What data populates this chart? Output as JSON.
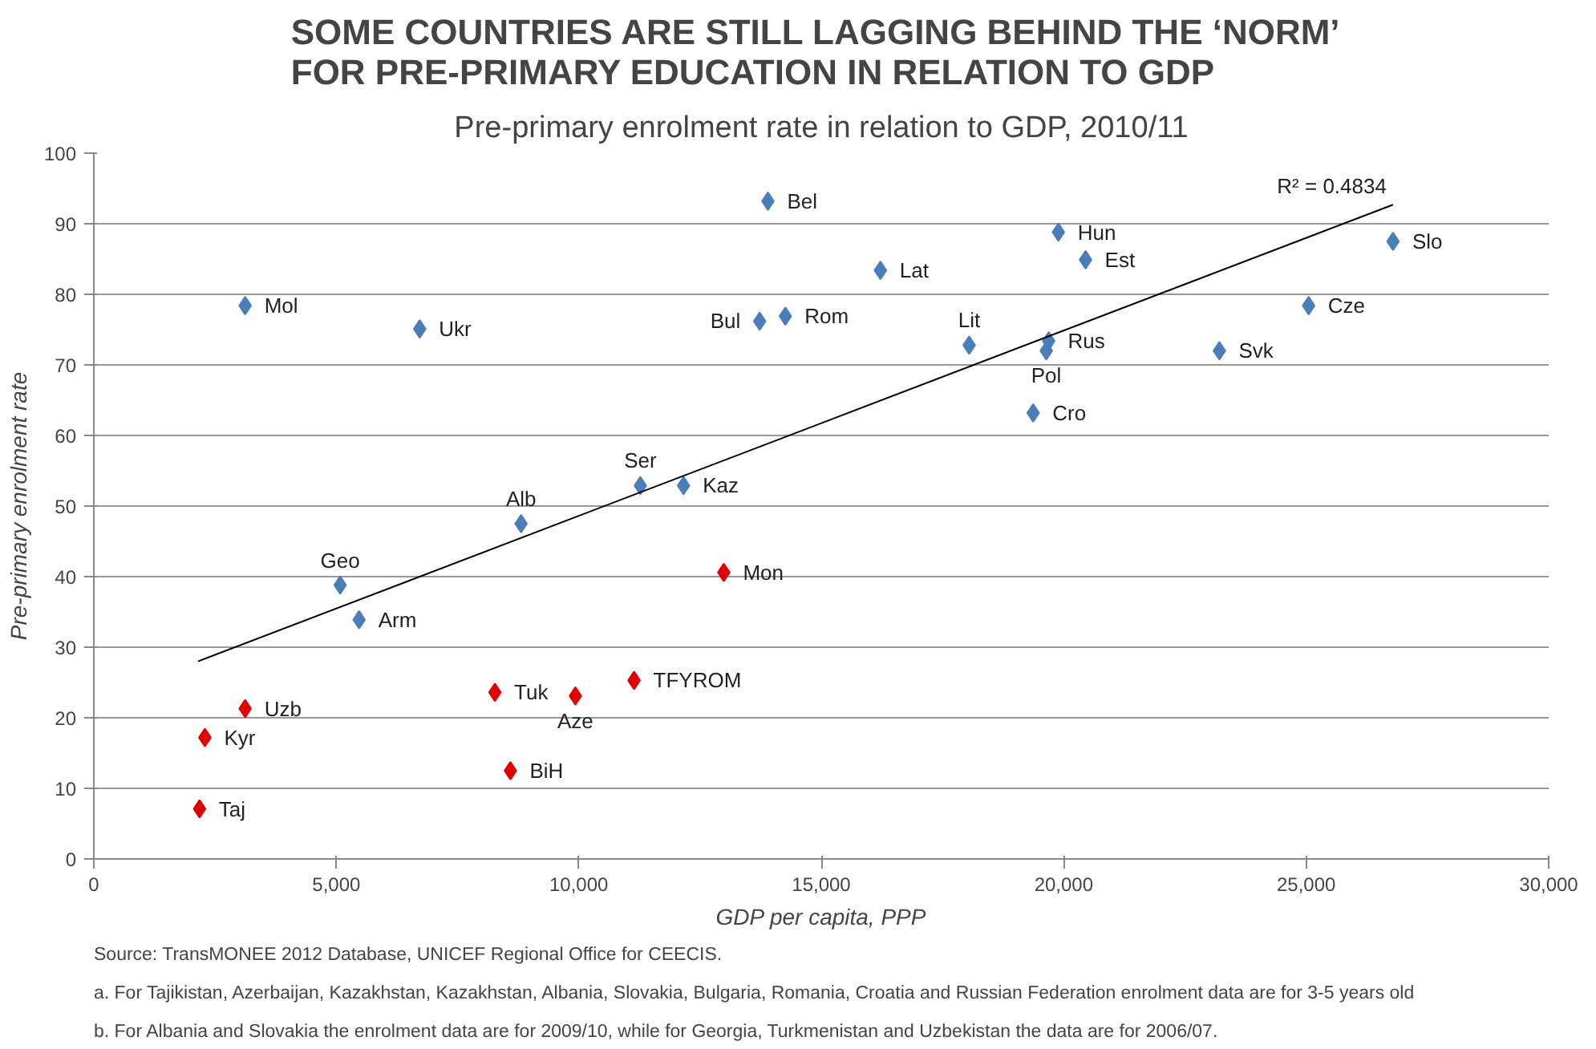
{
  "chart_data": {
    "type": "scatter",
    "title": "SOME COUNTRIES ARE STILL LAGGING BEHIND  THE ‘NORM’\nFOR PRE-PRIMARY EDUCATION IN RELATION TO GDP",
    "subtitle": "Pre-primary enrolment rate in relation to GDP, 2010/11",
    "xlabel": "GDP per capita, PPP",
    "ylabel": "Pre-primary enrolment rate",
    "xlim": [
      0,
      30000
    ],
    "ylim": [
      0,
      100
    ],
    "xticks": [
      0,
      {
        "value": 5000,
        "label": "5,000"
      },
      {
        "value": 10000,
        "label": "10,000"
      },
      {
        "value": 15000,
        "label": "15,000"
      },
      {
        "value": 20000,
        "label": "20,000"
      },
      {
        "value": 25000,
        "label": "25,000"
      },
      {
        "value": 30000,
        "label": "30,000"
      }
    ],
    "yticks": [
      0,
      10,
      20,
      30,
      40,
      50,
      60,
      70,
      80,
      90,
      100
    ],
    "grid": "y",
    "marker": "diamond",
    "series": [
      {
        "color": "#4a7ebb",
        "x": [
          3120,
          6720,
          5080,
          5470,
          8810,
          11270,
          12160,
          13900,
          13730,
          14260,
          16220,
          19890,
          20450,
          18050,
          19690,
          19640,
          19370,
          23210,
          25050,
          26790
        ],
        "values": [
          78.4,
          75.1,
          38.8,
          33.9,
          47.5,
          52.9,
          52.9,
          93.2,
          76.2,
          76.9,
          83.4,
          88.8,
          84.9,
          72.8,
          73.4,
          72.0,
          63.2,
          72.0,
          78.4,
          87.5
        ]
      },
      {
        "color": "#e00000",
        "x": [
          12990,
          3120,
          2290,
          2180,
          8270,
          9930,
          11140,
          8590
        ],
        "values": [
          40.6,
          21.3,
          17.2,
          7.1,
          23.6,
          23.1,
          25.3,
          12.5
        ]
      },
      {
        "type": "line",
        "color": "#000000",
        "marker": "none",
        "x": [
          2150,
          26790
        ],
        "values": [
          28.0,
          92.7
        ]
      }
    ],
    "annotations": [
      {
        "text": "Mol",
        "x": 3120,
        "y": 78.4
      },
      {
        "text": "Ukr",
        "x": 6720,
        "y": 75.1
      },
      {
        "text": "Geo",
        "x": 5080,
        "y": 38.8
      },
      {
        "text": "Arm",
        "x": 5470,
        "y": 33.9
      },
      {
        "text": "Alb",
        "x": 8810,
        "y": 47.5
      },
      {
        "text": "Ser",
        "x": 11270,
        "y": 52.9
      },
      {
        "text": "Kaz",
        "x": 12160,
        "y": 52.9
      },
      {
        "text": "Bel",
        "x": 13900,
        "y": 93.2
      },
      {
        "text": "Bul",
        "x": 13730,
        "y": 76.2
      },
      {
        "text": "Rom",
        "x": 14260,
        "y": 76.9
      },
      {
        "text": "Lat",
        "x": 16220,
        "y": 83.4
      },
      {
        "text": "Hun",
        "x": 19890,
        "y": 88.8
      },
      {
        "text": "Est",
        "x": 20450,
        "y": 84.9
      },
      {
        "text": "Lit",
        "x": 18050,
        "y": 72.8
      },
      {
        "text": "Rus",
        "x": 19690,
        "y": 73.4
      },
      {
        "text": "Pol",
        "x": 19640,
        "y": 72.0
      },
      {
        "text": "Cro",
        "x": 19370,
        "y": 63.2
      },
      {
        "text": "Svk",
        "x": 23210,
        "y": 72.0
      },
      {
        "text": "Cze",
        "x": 25050,
        "y": 78.4
      },
      {
        "text": "Slo",
        "x": 26790,
        "y": 87.5
      },
      {
        "text": "Mon",
        "x": 12990,
        "y": 40.6
      },
      {
        "text": "Uzb",
        "x": 3120,
        "y": 21.3
      },
      {
        "text": "Kyr",
        "x": 2290,
        "y": 17.2
      },
      {
        "text": "Taj",
        "x": 2180,
        "y": 7.1
      },
      {
        "text": "Tuk",
        "x": 8270,
        "y": 23.6
      },
      {
        "text": "Aze",
        "x": 9930,
        "y": 23.1
      },
      {
        "text": "TFYROM",
        "x": 11140,
        "y": 25.3
      },
      {
        "text": "BiH",
        "x": 8590,
        "y": 12.5
      },
      {
        "text": "R² = 0.4834",
        "x": 26790,
        "y": 92.7
      },
      "Source: TransMONEE 2012 Database, UNICEF Regional Office for CEECIS.",
      "a. For Tajikistan,  Azerbaijan, Kazakhstan, Kazakhstan, Albania, Slovakia, Bulgaria, Romania, Croatia and Russian Federation enrolment data are for 3-5 years old",
      "b. For Albania and Slovakia the enrolment data are for 2009/10, while for Georgia, Turkmenistan  and Uzbekistan the data are for 2006/07."
    ]
  }
}
